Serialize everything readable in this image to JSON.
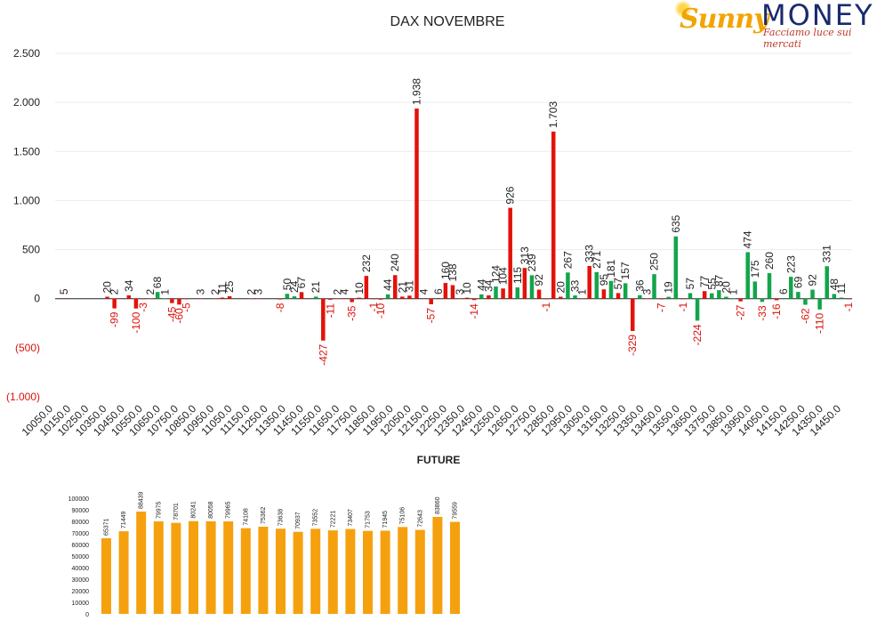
{
  "logo": {
    "brand_a": "Sunny",
    "brand_b": "MONEY",
    "tagline": "Facciamo luce sui mercati"
  },
  "colors": {
    "positive": "#12a54a",
    "negative": "#e3120b",
    "future": "#f5a10f",
    "text": "#222222",
    "negative_label": "#d8140c"
  },
  "chart_data": [
    {
      "type": "bar",
      "title": "DAX NOVEMBRE",
      "ylim": [
        -1000,
        2500
      ],
      "yticks": [
        {
          "value": 2500,
          "label": "2.500"
        },
        {
          "value": 2000,
          "label": "2.000"
        },
        {
          "value": 1500,
          "label": "1.500"
        },
        {
          "value": 1000,
          "label": "1.000"
        },
        {
          "value": 500,
          "label": "500"
        },
        {
          "value": 0,
          "label": "0"
        },
        {
          "value": -500,
          "label": "(500)"
        },
        {
          "value": -1000,
          "label": "(1.000)"
        }
      ],
      "x_tick_labels": [
        "10050.0",
        "10150.0",
        "10250.0",
        "10350.0",
        "10450.0",
        "10550.0",
        "10650.0",
        "10750.0",
        "10850.0",
        "10950.0",
        "11050.0",
        "11150.0",
        "11250.0",
        "11350.0",
        "11450.0",
        "11550.0",
        "11650.0",
        "11750.0",
        "11850.0",
        "11950.0",
        "12050.0",
        "12150.0",
        "12250.0",
        "12350.0",
        "12450.0",
        "12550.0",
        "12650.0",
        "12750.0",
        "12850.0",
        "12950.0",
        "13050.0",
        "13150.0",
        "13250.0",
        "13350.0",
        "13450.0",
        "13550.0",
        "13650.0",
        "13750.0",
        "13850.0",
        "13950.0",
        "14050.0",
        "14150.0",
        "14250.0",
        "14350.0",
        "14450.0"
      ],
      "grid": true,
      "bars": [
        {
          "x": 10050,
          "value": 5,
          "color": "red"
        },
        {
          "x": 10350,
          "value": 20,
          "color": "red"
        },
        {
          "x": 10400,
          "value": -99,
          "color": "red"
        },
        {
          "x": 10400,
          "value": 2,
          "color": "red"
        },
        {
          "x": 10500,
          "value": 34,
          "color": "red"
        },
        {
          "x": 10550,
          "value": -100,
          "color": "red"
        },
        {
          "x": 10600,
          "value": -3,
          "color": "red"
        },
        {
          "x": 10650,
          "value": 2,
          "color": "red"
        },
        {
          "x": 10700,
          "value": 68,
          "color": "green"
        },
        {
          "x": 10750,
          "value": 1,
          "color": "green"
        },
        {
          "x": 10800,
          "value": -45,
          "color": "red"
        },
        {
          "x": 10850,
          "value": -60,
          "color": "red"
        },
        {
          "x": 10900,
          "value": -5,
          "color": "red"
        },
        {
          "x": 11000,
          "value": 3,
          "color": "red"
        },
        {
          "x": 11100,
          "value": 2,
          "color": "red"
        },
        {
          "x": 11150,
          "value": 11,
          "color": "red"
        },
        {
          "x": 11200,
          "value": 25,
          "color": "red"
        },
        {
          "x": 11350,
          "value": 2,
          "color": "red"
        },
        {
          "x": 11400,
          "value": 3,
          "color": "red"
        },
        {
          "x": 11550,
          "value": -8,
          "color": "red"
        },
        {
          "x": 11600,
          "value": 50,
          "color": "green"
        },
        {
          "x": 11650,
          "value": 24,
          "color": "green"
        },
        {
          "x": 11700,
          "value": 67,
          "color": "red"
        },
        {
          "x": 11800,
          "value": 21,
          "color": "green"
        },
        {
          "x": 11850,
          "value": -427,
          "color": "red"
        },
        {
          "x": 11900,
          "value": -11,
          "color": "red"
        },
        {
          "x": 11950,
          "value": 2,
          "color": "red"
        },
        {
          "x": 12000,
          "value": 4,
          "color": "red"
        },
        {
          "x": 12050,
          "value": -35,
          "color": "red"
        },
        {
          "x": 12100,
          "value": 10,
          "color": "red"
        },
        {
          "x": 12150,
          "value": 232,
          "color": "red"
        },
        {
          "x": 12200,
          "value": -1,
          "color": "red"
        },
        {
          "x": 12250,
          "value": -10,
          "color": "red"
        },
        {
          "x": 12300,
          "value": 44,
          "color": "green"
        },
        {
          "x": 12350,
          "value": 240,
          "color": "red"
        },
        {
          "x": 12400,
          "value": 21,
          "color": "red"
        },
        {
          "x": 12450,
          "value": 31,
          "color": "red"
        },
        {
          "x": 12500,
          "value": 1938,
          "color": "red"
        },
        {
          "x": 12550,
          "value": 4,
          "color": "red"
        },
        {
          "x": 12600,
          "value": -57,
          "color": "red"
        },
        {
          "x": 12650,
          "value": 6,
          "color": "red"
        },
        {
          "x": 12700,
          "value": 160,
          "color": "red"
        },
        {
          "x": 12750,
          "value": 138,
          "color": "red"
        },
        {
          "x": 12800,
          "value": 3,
          "color": "red"
        },
        {
          "x": 12850,
          "value": 10,
          "color": "red"
        },
        {
          "x": 12900,
          "value": -14,
          "color": "red"
        },
        {
          "x": 12950,
          "value": 44,
          "color": "green"
        },
        {
          "x": 13000,
          "value": 34,
          "color": "red"
        },
        {
          "x": 13050,
          "value": 124,
          "color": "green"
        },
        {
          "x": 13100,
          "value": 104,
          "color": "red"
        },
        {
          "x": 13150,
          "value": 926,
          "color": "red"
        },
        {
          "x": 13200,
          "value": 115,
          "color": "green"
        },
        {
          "x": 13250,
          "value": 313,
          "color": "red"
        },
        {
          "x": 13300,
          "value": 239,
          "color": "green"
        },
        {
          "x": 13350,
          "value": 92,
          "color": "red"
        },
        {
          "x": 13400,
          "value": -1,
          "color": "red"
        },
        {
          "x": 13450,
          "value": 1703,
          "color": "red"
        },
        {
          "x": 13500,
          "value": 20,
          "color": "red"
        },
        {
          "x": 13550,
          "value": 267,
          "color": "green"
        },
        {
          "x": 13600,
          "value": 33,
          "color": "green"
        },
        {
          "x": 13650,
          "value": 1,
          "color": "red"
        },
        {
          "x": 13700,
          "value": 333,
          "color": "red"
        },
        {
          "x": 13750,
          "value": 271,
          "color": "green"
        },
        {
          "x": 13800,
          "value": 95,
          "color": "red"
        },
        {
          "x": 13850,
          "value": 181,
          "color": "green"
        },
        {
          "x": 13900,
          "value": 57,
          "color": "red"
        },
        {
          "x": 13950,
          "value": 157,
          "color": "green"
        },
        {
          "x": 14000,
          "value": -329,
          "color": "red"
        },
        {
          "x": 14050,
          "value": 36,
          "color": "green"
        },
        {
          "x": 14100,
          "value": 3,
          "color": "red"
        },
        {
          "x": 14150,
          "value": 250,
          "color": "green"
        },
        {
          "x": 14200,
          "value": -7,
          "color": "red"
        },
        {
          "x": 14250,
          "value": 19,
          "color": "green"
        },
        {
          "x": 14300,
          "value": 635,
          "color": "green"
        },
        {
          "x": 14350,
          "value": -1,
          "color": "red"
        },
        {
          "x": 14400,
          "value": 57,
          "color": "green"
        },
        {
          "x": 14450,
          "value": -224,
          "color": "green"
        },
        {
          "x": 14500,
          "value": 77,
          "color": "red"
        },
        {
          "x": 14550,
          "value": 55,
          "color": "green"
        },
        {
          "x": 14600,
          "value": 87,
          "color": "green"
        },
        {
          "x": 14650,
          "value": 20,
          "color": "green"
        },
        {
          "x": 14700,
          "value": 1,
          "color": "green"
        },
        {
          "x": 14750,
          "value": -27,
          "color": "red"
        },
        {
          "x": 14800,
          "value": 474,
          "color": "green"
        },
        {
          "x": 14850,
          "value": 175,
          "color": "green"
        },
        {
          "x": 14900,
          "value": -33,
          "color": "green"
        },
        {
          "x": 14950,
          "value": 260,
          "color": "green"
        },
        {
          "x": 15000,
          "value": -16,
          "color": "red"
        },
        {
          "x": 15050,
          "value": 6,
          "color": "green"
        },
        {
          "x": 15100,
          "value": 223,
          "color": "green"
        },
        {
          "x": 15150,
          "value": 69,
          "color": "green"
        },
        {
          "x": 15200,
          "value": -62,
          "color": "green"
        },
        {
          "x": 15250,
          "value": 92,
          "color": "green"
        },
        {
          "x": 15300,
          "value": -110,
          "color": "green"
        },
        {
          "x": 15350,
          "value": 331,
          "color": "green"
        },
        {
          "x": 15400,
          "value": 48,
          "color": "green"
        },
        {
          "x": 15450,
          "value": 11,
          "color": "green"
        },
        {
          "x": 15500,
          "value": -1,
          "color": "red"
        }
      ]
    },
    {
      "type": "bar",
      "title": "FUTURE",
      "ylim": [
        0,
        100000
      ],
      "yticks": [
        {
          "value": 100000,
          "label": "100000"
        },
        {
          "value": 90000,
          "label": "90000"
        },
        {
          "value": 80000,
          "label": "80000"
        },
        {
          "value": 70000,
          "label": "70000"
        },
        {
          "value": 60000,
          "label": "60000"
        },
        {
          "value": 50000,
          "label": "50000"
        },
        {
          "value": 40000,
          "label": "40000"
        },
        {
          "value": 30000,
          "label": "30000"
        },
        {
          "value": 20000,
          "label": "20000"
        },
        {
          "value": 10000,
          "label": "10000"
        },
        {
          "value": 0,
          "label": "0"
        }
      ],
      "values": [
        65371,
        71449,
        88439,
        79975,
        78701,
        80241,
        80058,
        79965,
        74108,
        75362,
        73638,
        70937,
        73552,
        72221,
        73407,
        71753,
        71945,
        75106,
        72643,
        83860,
        79559
      ]
    }
  ]
}
